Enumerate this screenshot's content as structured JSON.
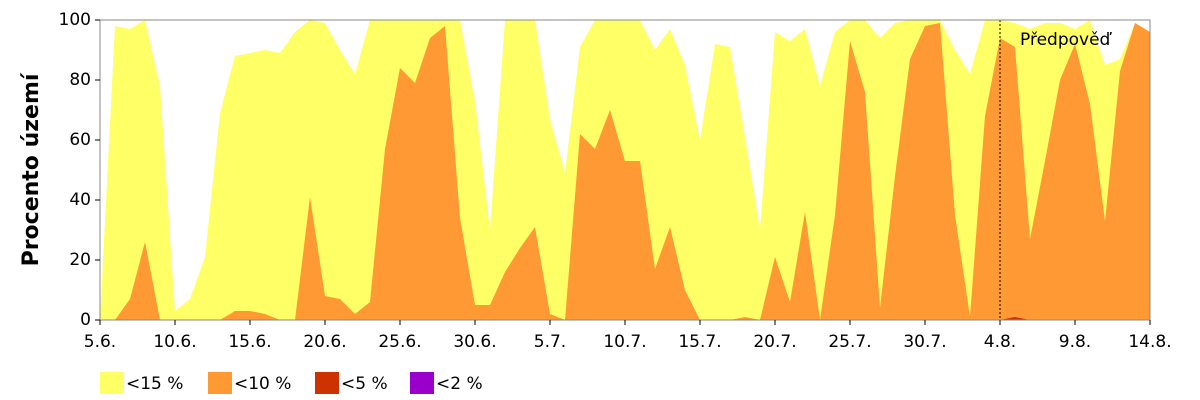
{
  "chart_data": {
    "type": "area",
    "y_label": "Procento území",
    "categories": [
      "5.6.",
      null,
      null,
      null,
      null,
      "10.6.",
      null,
      null,
      null,
      null,
      "15.6.",
      null,
      null,
      null,
      null,
      "20.6.",
      null,
      null,
      null,
      null,
      "25.6.",
      null,
      null,
      null,
      null,
      "30.6.",
      null,
      null,
      null,
      null,
      "5.7.",
      null,
      null,
      null,
      null,
      "10.7.",
      null,
      null,
      null,
      null,
      "15.7.",
      null,
      null,
      null,
      null,
      "20.7.",
      null,
      null,
      null,
      null,
      "25.7.",
      null,
      null,
      null,
      null,
      "30.7.",
      null,
      null,
      null,
      null,
      "4.8.",
      null,
      null,
      null,
      null,
      "9.8.",
      null,
      null,
      null,
      null,
      "14.8."
    ],
    "series": [
      {
        "name": "<15 %",
        "color": "#ffff66",
        "values": [
          0,
          98,
          97,
          100,
          78,
          3,
          7,
          21,
          69,
          88,
          89,
          90,
          89,
          96,
          100,
          99,
          90,
          82,
          100,
          100,
          100,
          100,
          100,
          100,
          100,
          73,
          30,
          100,
          100,
          100,
          67,
          49,
          91,
          100,
          100,
          100,
          100,
          90,
          97,
          85,
          60,
          92,
          91,
          61,
          30,
          96,
          93,
          97,
          78,
          96,
          100,
          100,
          94,
          99,
          100,
          100,
          100,
          90,
          82,
          100,
          100,
          99,
          97,
          99,
          99,
          97,
          100,
          85,
          87,
          99,
          96
        ]
      },
      {
        "name": "<10 %",
        "color": "#ff9933",
        "values": [
          0,
          0,
          7,
          26,
          0,
          0,
          0,
          0,
          0,
          3,
          3,
          2,
          0,
          0,
          41,
          8,
          7,
          2,
          6,
          57,
          84,
          79,
          94,
          98,
          34,
          5,
          5,
          16,
          24,
          31,
          2,
          0,
          62,
          57,
          70,
          53,
          53,
          17,
          31,
          10,
          0,
          0,
          0,
          1,
          0,
          21,
          6,
          36,
          0,
          35,
          93,
          76,
          4,
          48,
          87,
          98,
          99,
          35,
          1,
          68,
          94,
          91,
          27,
          53,
          80,
          92,
          72,
          33,
          83,
          99,
          96
        ]
      },
      {
        "name": "<5 %",
        "color": "#cc3300",
        "values": [
          0,
          0,
          0,
          0,
          0,
          0,
          0,
          0,
          0,
          0,
          0,
          0,
          0,
          0,
          0,
          0,
          0,
          0,
          0,
          0,
          0,
          0,
          0,
          0,
          0,
          0,
          0,
          0,
          0,
          0,
          0,
          0,
          0,
          0,
          0,
          0,
          0,
          0,
          0,
          0,
          0,
          0,
          0,
          0,
          0,
          0,
          0,
          0,
          0,
          0,
          0,
          0,
          0,
          0,
          0,
          0,
          0,
          0,
          0,
          0,
          0,
          1,
          0,
          0,
          0,
          0,
          0,
          0,
          0,
          0,
          0
        ]
      },
      {
        "name": "<2 %",
        "color": "#9900cc",
        "values": [
          0,
          0,
          0,
          0,
          0,
          0,
          0,
          0,
          0,
          0,
          0,
          0,
          0,
          0,
          0,
          0,
          0,
          0,
          0,
          0,
          0,
          0,
          0,
          0,
          0,
          0,
          0,
          0,
          0,
          0,
          0,
          0,
          0,
          0,
          0,
          0,
          0,
          0,
          0,
          0,
          0,
          0,
          0,
          0,
          0,
          0,
          0,
          0,
          0,
          0,
          0,
          0,
          0,
          0,
          0,
          0,
          0,
          0,
          0,
          0,
          0,
          0,
          0,
          0,
          0,
          0,
          0,
          0,
          0,
          0,
          0
        ]
      }
    ],
    "ylim": [
      0,
      100
    ],
    "yticks": [
      0,
      20,
      40,
      60,
      80,
      100
    ],
    "annotation": {
      "text": "Předpověď",
      "category": "4.8."
    }
  }
}
